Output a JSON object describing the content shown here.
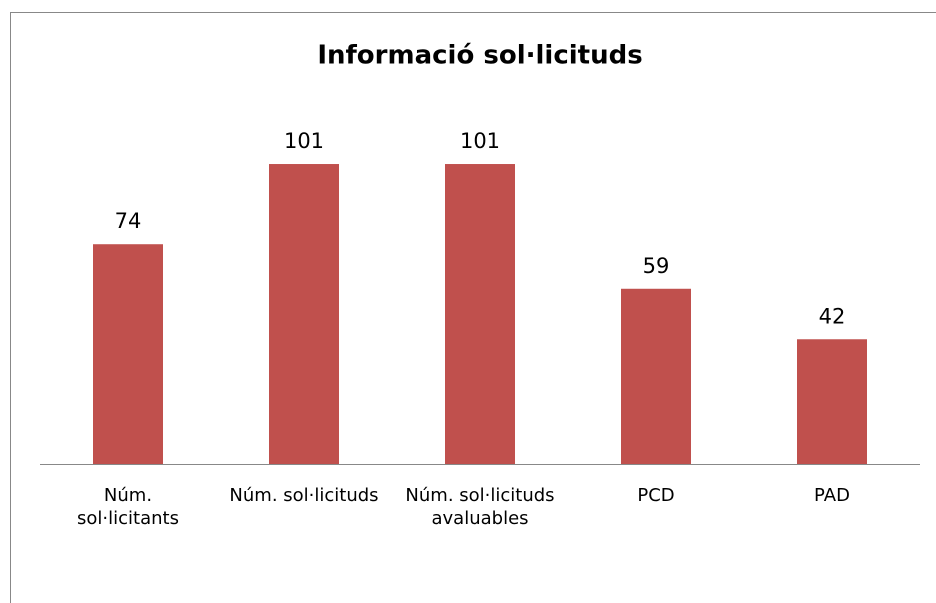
{
  "chart_data": {
    "type": "bar",
    "title": "Informació sol·licituds",
    "categories": [
      "Núm. sol·licitants",
      "Núm. sol·licituds",
      "Núm. sol·licituds avaluables",
      "PCD",
      "PAD"
    ],
    "values": [
      74,
      101,
      101,
      59,
      42
    ],
    "color": "#c0504d"
  }
}
